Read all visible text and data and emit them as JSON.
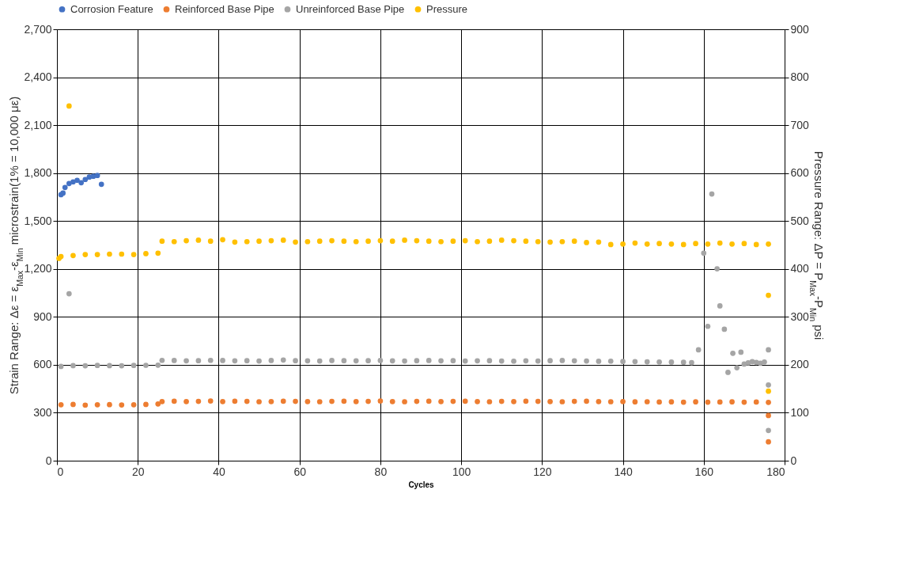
{
  "chart_data": {
    "type": "scatter",
    "xlabel": "Cycles",
    "ylabel": "Strain Range: Δε = ε$_{Max}$-ε$_{Min}$ microstrain(1% = 10,000 με)",
    "y2label": "Pressure Range: ΔP = P$_{Max}$-P$_{Min}$ psi",
    "xlim": [
      0,
      180
    ],
    "xticks": [
      0,
      20,
      40,
      60,
      80,
      100,
      120,
      140,
      160,
      180
    ],
    "ylim": [
      0,
      2700
    ],
    "yticks": [
      0,
      300,
      600,
      900,
      {
        "value": 1200,
        "label": "1,200"
      },
      {
        "value": 1500,
        "label": "1,500"
      },
      {
        "value": 1800,
        "label": "1,800"
      },
      {
        "value": 2100,
        "label": "2,100"
      },
      {
        "value": 2400,
        "label": "2,400"
      },
      {
        "value": 2700,
        "label": "2,700"
      }
    ],
    "y2lim": [
      0,
      900
    ],
    "y2ticks": [
      0,
      100,
      200,
      300,
      400,
      500,
      600,
      700,
      800,
      900
    ],
    "grid": true,
    "legend": "top",
    "marker": "circle",
    "series": [
      {
        "name": "Corrosion Feature",
        "color": "#4472c4",
        "x": [
          1,
          1.5,
          2,
          3,
          4,
          5,
          6,
          7,
          8,
          9,
          10,
          11
        ],
        "values": [
          1665,
          1675,
          1710,
          1735,
          1745,
          1755,
          1740,
          1760,
          1775,
          1780,
          1785,
          1730
        ]
      },
      {
        "name": "Reinforced Base Pipe",
        "color": "#ed7d31",
        "x": [
          1,
          4,
          7,
          10,
          13,
          16,
          19,
          22,
          25,
          26,
          29,
          32,
          35,
          38,
          41,
          44,
          47,
          50,
          53,
          56,
          59,
          62,
          65,
          68,
          71,
          74,
          77,
          80,
          83,
          86,
          89,
          92,
          95,
          98,
          101,
          104,
          107,
          110,
          113,
          116,
          119,
          122,
          125,
          128,
          131,
          134,
          137,
          140,
          143,
          146,
          149,
          152,
          155,
          158,
          161,
          164,
          167,
          170,
          173,
          176,
          176,
          176
        ],
        "values": [
          350,
          352,
          348,
          350,
          351,
          349,
          350,
          352,
          355,
          370,
          372,
          370,
          371,
          373,
          370,
          372,
          371,
          369,
          370,
          372,
          371,
          370,
          369,
          371,
          372,
          370,
          371,
          373,
          370,
          369,
          371,
          372,
          370,
          371,
          372,
          370,
          369,
          371,
          370,
          372,
          371,
          370,
          369,
          371,
          372,
          370,
          369,
          370,
          368,
          369,
          367,
          368,
          366,
          368,
          366,
          367,
          368,
          366,
          367,
          365,
          283,
          118
        ]
      },
      {
        "name": "Unreinforced Base Pipe",
        "color": "#a5a5a5",
        "x": [
          1,
          3,
          4,
          7,
          10,
          13,
          16,
          19,
          22,
          25,
          26,
          29,
          32,
          35,
          38,
          41,
          44,
          47,
          50,
          53,
          56,
          59,
          62,
          65,
          68,
          71,
          74,
          77,
          80,
          83,
          86,
          89,
          92,
          95,
          98,
          101,
          104,
          107,
          110,
          113,
          116,
          119,
          122,
          125,
          128,
          131,
          134,
          137,
          140,
          143,
          146,
          149,
          152,
          155,
          157,
          158.7,
          160,
          161,
          162,
          163.3,
          164,
          165.1,
          166,
          167.2,
          168.2,
          169.2,
          170,
          171,
          172,
          173,
          174,
          175,
          176,
          176,
          176
        ],
        "values": [
          590,
          1045,
          595,
          594,
          596,
          595,
          594,
          596,
          597,
          598,
          628,
          627,
          625,
          626,
          628,
          627,
          625,
          626,
          624,
          627,
          630,
          626,
          625,
          624,
          627,
          626,
          625,
          626,
          627,
          625,
          624,
          626,
          627,
          625,
          626,
          624,
          625,
          626,
          624,
          623,
          625,
          624,
          626,
          627,
          625,
          624,
          622,
          623,
          621,
          620,
          619,
          618,
          617,
          616,
          614,
          694,
          1299,
          841,
          1669,
          1201,
          969,
          823,
          553,
          672,
          582,
          679,
          605,
          612,
          620,
          615,
          610,
          618,
          694,
          474,
          189
        ]
      },
      {
        "name": "Pressure",
        "color": "#ffc000",
        "axis": "y2",
        "x": [
          0.5,
          3,
          1,
          4,
          7,
          10,
          13,
          16,
          19,
          22,
          25,
          26,
          29,
          32,
          35,
          38,
          41,
          44,
          47,
          50,
          53,
          56,
          59,
          62,
          65,
          68,
          71,
          74,
          77,
          80,
          83,
          86,
          89,
          92,
          95,
          98,
          101,
          104,
          107,
          110,
          113,
          116,
          119,
          122,
          125,
          128,
          131,
          134,
          137,
          140,
          143,
          146,
          149,
          152,
          155,
          158,
          161,
          164,
          167,
          170,
          173,
          176,
          176,
          176
        ],
        "values": [
          422,
          740,
          426,
          428,
          430,
          430,
          431,
          431,
          430,
          432,
          433,
          458,
          457,
          459,
          460,
          458,
          461,
          456,
          457,
          458,
          459,
          460,
          456,
          457,
          458,
          459,
          458,
          457,
          458,
          459,
          458,
          460,
          459,
          458,
          457,
          458,
          459,
          457,
          458,
          460,
          459,
          458,
          457,
          456,
          457,
          458,
          455,
          456,
          451,
          452,
          454,
          452,
          453,
          452,
          451,
          453,
          452,
          454,
          452,
          453,
          451,
          452,
          345,
          145
        ]
      }
    ]
  }
}
